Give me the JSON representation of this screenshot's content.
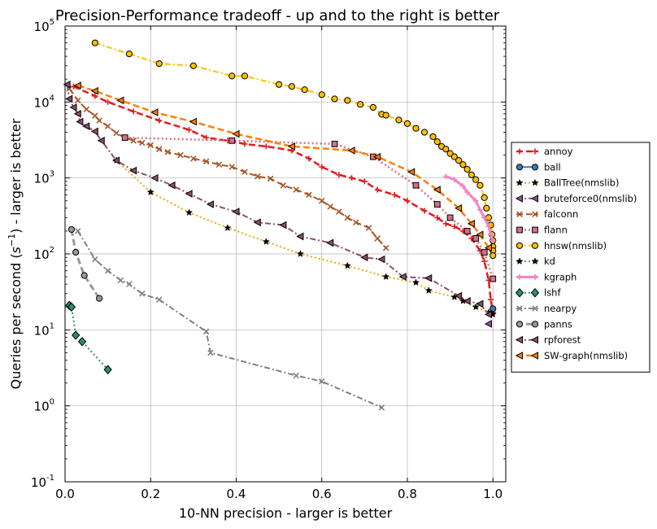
{
  "chart_data": {
    "type": "line",
    "title": "Precision-Performance tradeoff - up and to the right is better",
    "xlabel": "10-NN precision - larger is better",
    "ylabel_prefix": "Queries per second (",
    "ylabel_unit": "s",
    "ylabel_unit_exp": "−1",
    "ylabel_suffix": ") - larger is better",
    "xlim": [
      0.0,
      1.03
    ],
    "ylim": [
      0.1,
      100000
    ],
    "yscale": "log",
    "grid": true,
    "legend_position": "outside-right",
    "x_ticks": [
      {
        "value": 0.0,
        "label": "0.0"
      },
      {
        "value": 0.2,
        "label": "0.2"
      },
      {
        "value": 0.4,
        "label": "0.4"
      },
      {
        "value": 0.6,
        "label": "0.6"
      },
      {
        "value": 0.8,
        "label": "0.8"
      },
      {
        "value": 1.0,
        "label": "1.0"
      }
    ],
    "y_ticks": [
      {
        "value": 0.1,
        "base": "10",
        "exp": "-1"
      },
      {
        "value": 1,
        "base": "10",
        "exp": "0"
      },
      {
        "value": 10,
        "base": "10",
        "exp": "1"
      },
      {
        "value": 100,
        "base": "10",
        "exp": "2"
      },
      {
        "value": 1000,
        "base": "10",
        "exp": "3"
      },
      {
        "value": 10000,
        "base": "10",
        "exp": "4"
      },
      {
        "value": 100000,
        "base": "10",
        "exp": "5"
      }
    ],
    "series": [
      {
        "name": "annoy",
        "color": "#e41a1c",
        "marker": "plus",
        "dash": "dashed",
        "lineWidth": 2.5,
        "points": [
          [
            0.02,
            16000
          ],
          [
            0.07,
            12000
          ],
          [
            0.1,
            10000
          ],
          [
            0.16,
            7500
          ],
          [
            0.22,
            5700
          ],
          [
            0.29,
            4300
          ],
          [
            0.33,
            3400
          ],
          [
            0.38,
            3100
          ],
          [
            0.42,
            2800
          ],
          [
            0.47,
            2600
          ],
          [
            0.53,
            2300
          ],
          [
            0.57,
            1800
          ],
          [
            0.6,
            1400
          ],
          [
            0.64,
            1100
          ],
          [
            0.67,
            1000
          ],
          [
            0.7,
            900
          ],
          [
            0.73,
            700
          ],
          [
            0.77,
            600
          ],
          [
            0.8,
            500
          ],
          [
            0.84,
            370
          ],
          [
            0.87,
            300
          ],
          [
            0.89,
            250
          ],
          [
            0.91,
            230
          ],
          [
            0.93,
            200
          ],
          [
            0.95,
            160
          ],
          [
            0.97,
            110
          ],
          [
            0.98,
            80
          ],
          [
            0.99,
            45
          ],
          [
            0.995,
            25
          ],
          [
            1.0,
            17
          ]
        ]
      },
      {
        "name": "ball",
        "color": "#377eb8",
        "marker": "circle",
        "dash": "solid",
        "lineWidth": 2,
        "points": [
          [
            1.0,
            19
          ]
        ]
      },
      {
        "name": "BallTree(nmslib)",
        "color": "#e6ab02",
        "marker": "star",
        "dash": "dotted",
        "lineWidth": 2,
        "points": [
          [
            0.12,
            1700
          ],
          [
            0.2,
            650
          ],
          [
            0.29,
            350
          ],
          [
            0.38,
            220
          ],
          [
            0.47,
            145
          ],
          [
            0.55,
            100
          ],
          [
            0.66,
            70
          ],
          [
            0.75,
            50
          ],
          [
            0.82,
            42
          ],
          [
            0.85,
            33
          ],
          [
            0.91,
            27
          ],
          [
            0.93,
            24
          ],
          [
            0.96,
            20
          ],
          [
            0.99,
            17
          ]
        ]
      },
      {
        "name": "bruteforce0(nmslib)",
        "color": "#984ea3",
        "marker": "tri-left",
        "dash": "dashdot",
        "lineWidth": 2,
        "points": [
          [
            0.99,
            12
          ]
        ]
      },
      {
        "name": "falconn",
        "color": "#a65628",
        "marker": "x",
        "dash": "dashed",
        "lineWidth": 2,
        "points": [
          [
            0.01,
            15000
          ],
          [
            0.03,
            10500
          ],
          [
            0.05,
            8000
          ],
          [
            0.07,
            6600
          ],
          [
            0.08,
            5700
          ],
          [
            0.1,
            4800
          ],
          [
            0.12,
            3900
          ],
          [
            0.14,
            3400
          ],
          [
            0.16,
            3100
          ],
          [
            0.18,
            2900
          ],
          [
            0.2,
            2700
          ],
          [
            0.22,
            2400
          ],
          [
            0.24,
            2200
          ],
          [
            0.27,
            2000
          ],
          [
            0.3,
            1800
          ],
          [
            0.33,
            1650
          ],
          [
            0.36,
            1500
          ],
          [
            0.39,
            1400
          ],
          [
            0.42,
            1200
          ],
          [
            0.45,
            1050
          ],
          [
            0.48,
            980
          ],
          [
            0.51,
            800
          ],
          [
            0.54,
            700
          ],
          [
            0.57,
            600
          ],
          [
            0.6,
            500
          ],
          [
            0.62,
            420
          ],
          [
            0.64,
            360
          ],
          [
            0.66,
            300
          ],
          [
            0.68,
            260
          ],
          [
            0.71,
            220
          ],
          [
            0.73,
            160
          ],
          [
            0.75,
            120
          ]
        ]
      },
      {
        "name": "flann",
        "color": "#d66f85",
        "marker": "square",
        "dash": "dotted",
        "lineWidth": 2.5,
        "points": [
          [
            0.14,
            3400
          ],
          [
            0.39,
            3100
          ],
          [
            0.63,
            2800
          ],
          [
            0.72,
            1900
          ],
          [
            0.82,
            800
          ],
          [
            0.87,
            450
          ],
          [
            0.9,
            300
          ],
          [
            0.94,
            200
          ],
          [
            0.96,
            160
          ],
          [
            0.98,
            105
          ],
          [
            1.0,
            47
          ]
        ]
      },
      {
        "name": "hnsw(nmslib)",
        "color": "#ffbf00",
        "marker": "circle",
        "dash": "dashdot",
        "lineWidth": 2,
        "points": [
          [
            0.07,
            60000
          ],
          [
            0.15,
            43000
          ],
          [
            0.22,
            32000
          ],
          [
            0.3,
            30000
          ],
          [
            0.39,
            22000
          ],
          [
            0.42,
            22000
          ],
          [
            0.5,
            17000
          ],
          [
            0.53,
            16000
          ],
          [
            0.56,
            14500
          ],
          [
            0.6,
            12500
          ],
          [
            0.63,
            11000
          ],
          [
            0.66,
            10500
          ],
          [
            0.69,
            9300
          ],
          [
            0.72,
            8500
          ],
          [
            0.74,
            6900
          ],
          [
            0.75,
            6700
          ],
          [
            0.78,
            5800
          ],
          [
            0.8,
            5200
          ],
          [
            0.82,
            4500
          ],
          [
            0.84,
            4000
          ],
          [
            0.86,
            3500
          ],
          [
            0.87,
            3000
          ],
          [
            0.88,
            2600
          ],
          [
            0.89,
            2400
          ],
          [
            0.9,
            2100
          ],
          [
            0.91,
            1900
          ],
          [
            0.92,
            1700
          ],
          [
            0.93,
            1500
          ],
          [
            0.94,
            1300
          ],
          [
            0.95,
            1100
          ],
          [
            0.96,
            950
          ],
          [
            0.97,
            800
          ],
          [
            0.98,
            550
          ],
          [
            0.985,
            400
          ],
          [
            0.99,
            300
          ],
          [
            0.995,
            240
          ],
          [
            0.998,
            180
          ],
          [
            1.0,
            150
          ],
          [
            1.0,
            125
          ],
          [
            1.0,
            110
          ],
          [
            1.0,
            95
          ]
        ]
      },
      {
        "name": "kd",
        "color": "#4daf4a",
        "marker": "star",
        "dash": "dotted",
        "lineWidth": 2,
        "points": [
          [
            1.0,
            16
          ]
        ]
      },
      {
        "name": "kgraph",
        "color": "#f781bf",
        "marker": "plus",
        "dash": "solid",
        "lineWidth": 3,
        "points": [
          [
            0.89,
            1050
          ],
          [
            0.91,
            950
          ],
          [
            0.93,
            780
          ],
          [
            0.94,
            650
          ],
          [
            0.96,
            500
          ],
          [
            0.97,
            380
          ],
          [
            0.98,
            300
          ],
          [
            0.99,
            230
          ],
          [
            0.995,
            180
          ],
          [
            1.0,
            150
          ]
        ]
      },
      {
        "name": "lshf",
        "color": "#2e8b74",
        "marker": "diamond",
        "dash": "dotted",
        "lineWidth": 2,
        "points": [
          [
            0.01,
            21
          ],
          [
            0.015,
            20
          ],
          [
            0.025,
            8.5
          ],
          [
            0.04,
            7
          ],
          [
            0.1,
            3
          ]
        ]
      },
      {
        "name": "nearpy",
        "color": "#808080",
        "marker": "x",
        "dash": "dashdot",
        "lineWidth": 2,
        "points": [
          [
            0.03,
            200
          ],
          [
            0.07,
            85
          ],
          [
            0.1,
            60
          ],
          [
            0.13,
            45
          ],
          [
            0.15,
            40
          ],
          [
            0.18,
            30
          ],
          [
            0.22,
            25
          ],
          [
            0.33,
            9.5
          ],
          [
            0.34,
            5
          ],
          [
            0.54,
            2.5
          ],
          [
            0.6,
            2.1
          ],
          [
            0.74,
            0.95
          ]
        ]
      },
      {
        "name": "panns",
        "color": "#999999",
        "marker": "circle",
        "dash": "dashed",
        "lineWidth": 3,
        "points": [
          [
            0.015,
            210
          ],
          [
            0.025,
            105
          ],
          [
            0.045,
            52
          ],
          [
            0.08,
            26
          ]
        ]
      },
      {
        "name": "rpforest",
        "color": "#8c4f68",
        "marker": "tri-left",
        "dash": "dashdot",
        "lineWidth": 2,
        "points": [
          [
            0.005,
            17000
          ],
          [
            0.01,
            11000
          ],
          [
            0.02,
            8500
          ],
          [
            0.03,
            7000
          ],
          [
            0.035,
            5500
          ],
          [
            0.05,
            4800
          ],
          [
            0.07,
            4100
          ],
          [
            0.085,
            3100
          ],
          [
            0.12,
            1700
          ],
          [
            0.16,
            1250
          ],
          [
            0.21,
            1000
          ],
          [
            0.25,
            800
          ],
          [
            0.29,
            620
          ],
          [
            0.34,
            450
          ],
          [
            0.4,
            360
          ],
          [
            0.45,
            260
          ],
          [
            0.51,
            240
          ],
          [
            0.55,
            170
          ],
          [
            0.62,
            140
          ],
          [
            0.7,
            90
          ],
          [
            0.74,
            85
          ],
          [
            0.79,
            50
          ],
          [
            0.85,
            48
          ],
          [
            0.92,
            28
          ],
          [
            0.94,
            24
          ],
          [
            0.97,
            22
          ],
          [
            0.99,
            16
          ]
        ]
      },
      {
        "name": "SW-graph(nmslib)",
        "color": "#ff7f00",
        "marker": "tri-left",
        "dash": "dashed",
        "lineWidth": 2.5,
        "points": [
          [
            0.03,
            16500
          ],
          [
            0.07,
            14000
          ],
          [
            0.13,
            10500
          ],
          [
            0.21,
            7300
          ],
          [
            0.3,
            5500
          ],
          [
            0.4,
            3800
          ],
          [
            0.53,
            2600
          ],
          [
            0.67,
            2300
          ],
          [
            0.73,
            1900
          ],
          [
            0.81,
            1200
          ],
          [
            0.87,
            700
          ],
          [
            0.92,
            400
          ],
          [
            0.95,
            250
          ],
          [
            0.97,
            180
          ],
          [
            0.99,
            120
          ]
        ]
      }
    ]
  }
}
